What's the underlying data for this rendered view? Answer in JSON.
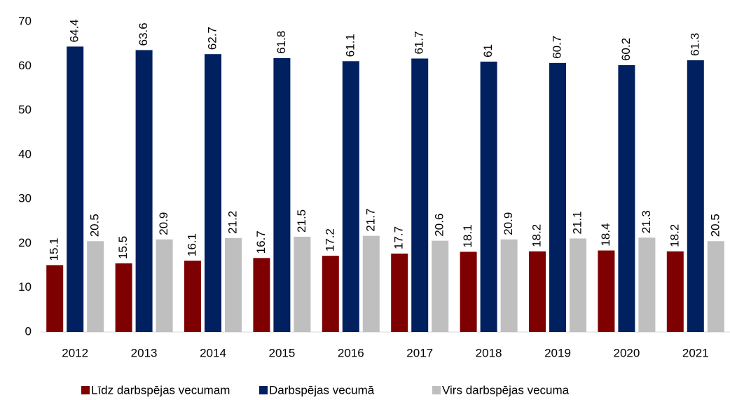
{
  "chart_data": {
    "type": "bar",
    "categories": [
      "2012",
      "2013",
      "2014",
      "2015",
      "2016",
      "2017",
      "2018",
      "2019",
      "2020",
      "2021"
    ],
    "series": [
      {
        "name": "Līdz darbspējas vecumam",
        "color": "#7f0000",
        "values": [
          15.1,
          15.5,
          16.1,
          16.7,
          17.2,
          17.7,
          18.1,
          18.2,
          18.4,
          18.2
        ]
      },
      {
        "name": "Darbspējas vecumā",
        "color": "#002060",
        "values": [
          64.4,
          63.6,
          62.7,
          61.8,
          61.1,
          61.7,
          61,
          60.7,
          60.2,
          61.3
        ]
      },
      {
        "name": "Virs darbspējas vecuma",
        "color": "#bfbfbf",
        "values": [
          20.5,
          20.9,
          21.2,
          21.5,
          21.7,
          20.6,
          20.9,
          21.1,
          21.3,
          20.5
        ]
      }
    ],
    "ylim": [
      0,
      70
    ],
    "yticks": [
      0,
      10,
      20,
      30,
      40,
      50,
      60,
      70
    ],
    "grid": false,
    "legend": "bottom"
  }
}
